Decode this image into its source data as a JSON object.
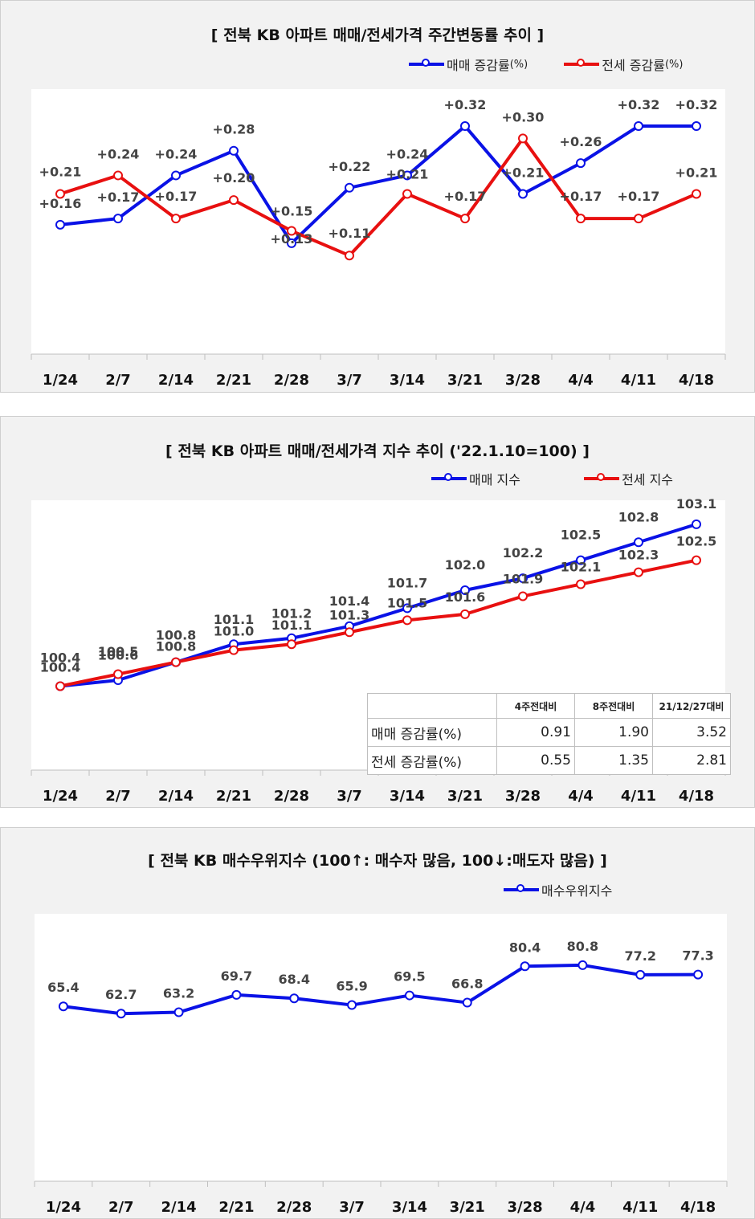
{
  "colors": {
    "sale": "#0a12e6",
    "jeonse": "#e81010",
    "index": "#0a12e6"
  },
  "categories": [
    "1/24",
    "2/7",
    "2/14",
    "2/21",
    "2/28",
    "3/7",
    "3/14",
    "3/21",
    "3/28",
    "4/4",
    "4/11",
    "4/18"
  ],
  "chart_data": [
    {
      "type": "line",
      "title": "[  전북  KB 아파트 매매/전세가격 주간변동률 추이  ]",
      "categories": [
        "1/24",
        "2/7",
        "2/14",
        "2/21",
        "2/28",
        "3/7",
        "3/14",
        "3/21",
        "3/28",
        "4/4",
        "4/11",
        "4/18"
      ],
      "ylim": [
        -0.05,
        0.38
      ],
      "series": [
        {
          "name": "매매 증감률",
          "unit": "(%)",
          "values": [
            0.16,
            0.17,
            0.24,
            0.28,
            0.13,
            0.22,
            0.24,
            0.32,
            0.21,
            0.26,
            0.32,
            0.32
          ],
          "labels": [
            "+0.16",
            "+0.17",
            "+0.24",
            "+0.28",
            "+0.13",
            "+0.22",
            "+0.24",
            "+0.32",
            "+0.21",
            "+0.26",
            "+0.32",
            "+0.32"
          ]
        },
        {
          "name": "전세 증감률",
          "unit": "(%)",
          "values": [
            0.21,
            0.24,
            0.17,
            0.2,
            0.15,
            0.11,
            0.21,
            0.17,
            0.3,
            0.17,
            0.17,
            0.21
          ],
          "labels": [
            "+0.21",
            "+0.24",
            "+0.17",
            "+0.20",
            "+0.15",
            "+0.11",
            "+0.21",
            "+0.17",
            "+0.30",
            "+0.17",
            "+0.17",
            "+0.21"
          ]
        }
      ]
    },
    {
      "type": "line",
      "title": "[  전북  KB 아파트 매매/전세가격 지수 추이 ('22.1.10=100)  ]",
      "categories": [
        "1/24",
        "2/7",
        "2/14",
        "2/21",
        "2/28",
        "3/7",
        "3/14",
        "3/21",
        "3/28",
        "4/4",
        "4/11",
        "4/18"
      ],
      "ylim": [
        99.0,
        103.5
      ],
      "series": [
        {
          "name": "매매 지수",
          "values": [
            100.4,
            100.5,
            100.8,
            101.1,
            101.2,
            101.4,
            101.7,
            102.0,
            102.2,
            102.5,
            102.8,
            103.1
          ],
          "labels": [
            "100.4",
            "100.5",
            "100.8",
            "101.1",
            "101.2",
            "101.4",
            "101.7",
            "102.0",
            "102.2",
            "102.5",
            "102.8",
            "103.1"
          ]
        },
        {
          "name": "전세 지수",
          "values": [
            100.4,
            100.6,
            100.8,
            101.0,
            101.1,
            101.3,
            101.5,
            101.6,
            101.9,
            102.1,
            102.3,
            102.5
          ],
          "labels": [
            "100.4",
            "100.6",
            "100.8",
            "101.0",
            "101.1",
            "101.3",
            "101.5",
            "101.6",
            "101.9",
            "102.1",
            "102.3",
            "102.5"
          ]
        }
      ],
      "table": {
        "headers": [
          "4주전대비",
          "8주전대비",
          "21/12/27대비"
        ],
        "rows": [
          {
            "label": "매매 증감률(%)",
            "values": [
              "0.91",
              "1.90",
              "3.52"
            ]
          },
          {
            "label": "전세 증감률(%)",
            "values": [
              "0.55",
              "1.35",
              "2.81"
            ]
          }
        ]
      }
    },
    {
      "type": "line",
      "title": "[  전북  KB 매수우위지수 (100↑: 매수자 많음, 100↓:매도자 많음)  ]",
      "categories": [
        "1/24",
        "2/7",
        "2/14",
        "2/21",
        "2/28",
        "3/7",
        "3/14",
        "3/21",
        "3/28",
        "4/4",
        "4/11",
        "4/18"
      ],
      "ylim": [
        0,
        100
      ],
      "series": [
        {
          "name": "매수우위지수",
          "values": [
            65.4,
            62.7,
            63.2,
            69.7,
            68.4,
            65.9,
            69.5,
            66.8,
            80.4,
            80.8,
            77.2,
            77.3
          ],
          "labels": [
            "65.4",
            "62.7",
            "63.2",
            "69.7",
            "68.4",
            "65.9",
            "69.5",
            "66.8",
            "80.4",
            "80.8",
            "77.2",
            "77.3"
          ]
        }
      ]
    }
  ]
}
